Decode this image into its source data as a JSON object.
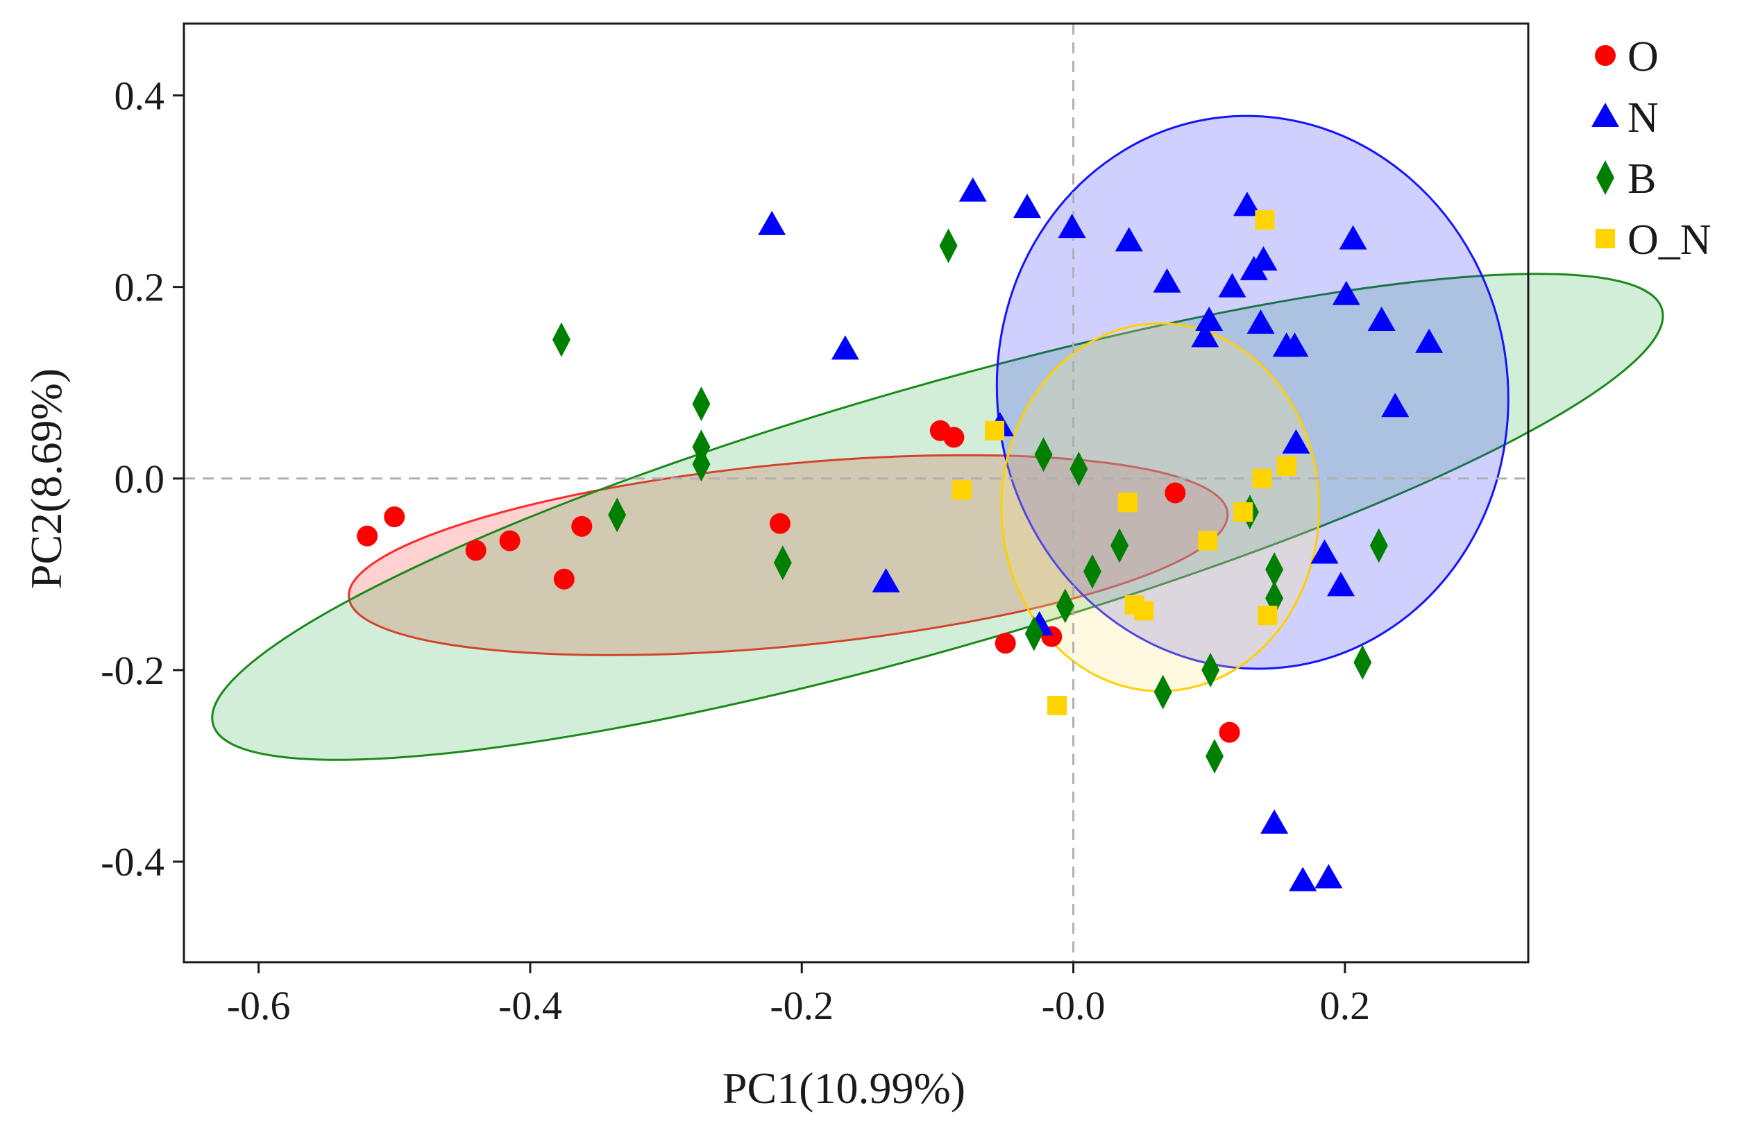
{
  "chart_data": {
    "type": "scatter",
    "xlabel": "PC1(10.99%)",
    "ylabel": "PC2(8.69%)",
    "xlim": [
      -0.655,
      0.335
    ],
    "ylim": [
      -0.505,
      0.475
    ],
    "x_ticks": [
      -0.6,
      -0.4,
      -0.2,
      0.0,
      0.2
    ],
    "x_tick_labels": [
      "-0.6",
      "-0.4",
      "-0.2",
      "-0.0",
      "0.2"
    ],
    "y_ticks": [
      -0.4,
      -0.2,
      0.0,
      0.2,
      0.4
    ],
    "y_tick_labels": [
      "-0.4",
      "-0.2",
      "0.0",
      "0.2",
      "0.4"
    ],
    "reference_lines": {
      "x": 0,
      "y": 0,
      "style": "dashed"
    },
    "legend_position": "right, outside plot",
    "series": [
      {
        "name": "O",
        "marker": "circle",
        "color": "#ff0000",
        "points": [
          [
            -0.52,
            -0.06
          ],
          [
            -0.5,
            -0.04
          ],
          [
            -0.44,
            -0.075
          ],
          [
            -0.415,
            -0.065
          ],
          [
            -0.375,
            -0.105
          ],
          [
            -0.362,
            -0.05
          ],
          [
            -0.216,
            -0.047
          ],
          [
            -0.098,
            0.05
          ],
          [
            -0.088,
            0.043
          ],
          [
            -0.05,
            -0.172
          ],
          [
            -0.016,
            -0.165
          ],
          [
            0.075,
            -0.015
          ],
          [
            0.115,
            -0.265
          ]
        ]
      },
      {
        "name": "N",
        "marker": "triangle",
        "color": "#0000ff",
        "points": [
          [
            -0.222,
            0.265
          ],
          [
            -0.168,
            0.135
          ],
          [
            -0.138,
            -0.108
          ],
          [
            -0.074,
            0.3
          ],
          [
            -0.054,
            0.055
          ],
          [
            -0.034,
            0.283
          ],
          [
            -0.025,
            -0.153
          ],
          [
            -0.001,
            0.262
          ],
          [
            0.041,
            0.248
          ],
          [
            0.069,
            0.205
          ],
          [
            0.097,
            0.148
          ],
          [
            0.1,
            0.165
          ],
          [
            0.117,
            0.2
          ],
          [
            0.128,
            0.285
          ],
          [
            0.133,
            0.218
          ],
          [
            0.14,
            0.228
          ],
          [
            0.138,
            0.162
          ],
          [
            0.157,
            0.138
          ],
          [
            0.163,
            0.138
          ],
          [
            0.164,
            0.037
          ],
          [
            0.185,
            -0.078
          ],
          [
            0.197,
            -0.112
          ],
          [
            0.201,
            0.192
          ],
          [
            0.206,
            0.25
          ],
          [
            0.227,
            0.165
          ],
          [
            0.237,
            0.075
          ],
          [
            0.262,
            0.142
          ],
          [
            0.148,
            -0.36
          ],
          [
            0.169,
            -0.42
          ],
          [
            0.188,
            -0.417
          ]
        ]
      },
      {
        "name": "B",
        "marker": "diamond",
        "color": "#008000",
        "points": [
          [
            -0.377,
            0.145
          ],
          [
            -0.336,
            -0.038
          ],
          [
            -0.274,
            0.078
          ],
          [
            -0.274,
            0.033
          ],
          [
            -0.274,
            0.015
          ],
          [
            -0.214,
            -0.088
          ],
          [
            -0.092,
            0.243
          ],
          [
            -0.029,
            -0.162
          ],
          [
            -0.022,
            0.025
          ],
          [
            -0.006,
            -0.133
          ],
          [
            0.004,
            0.01
          ],
          [
            0.014,
            -0.097
          ],
          [
            0.034,
            -0.07
          ],
          [
            0.066,
            -0.223
          ],
          [
            0.101,
            -0.2
          ],
          [
            0.104,
            -0.29
          ],
          [
            0.13,
            -0.035
          ],
          [
            0.148,
            -0.095
          ],
          [
            0.148,
            -0.125
          ],
          [
            0.213,
            -0.192
          ],
          [
            0.225,
            -0.07
          ]
        ]
      },
      {
        "name": "O_N",
        "marker": "square",
        "color": "#ffd400",
        "points": [
          [
            -0.058,
            0.05
          ],
          [
            -0.082,
            -0.012
          ],
          [
            -0.012,
            -0.237
          ],
          [
            0.04,
            -0.025
          ],
          [
            0.045,
            -0.132
          ],
          [
            0.052,
            -0.138
          ],
          [
            0.099,
            -0.065
          ],
          [
            0.125,
            -0.035
          ],
          [
            0.139,
            0.0
          ],
          [
            0.143,
            -0.143
          ],
          [
            0.141,
            0.27
          ],
          [
            0.157,
            0.013
          ]
        ]
      }
    ],
    "ellipses": [
      {
        "group": "O",
        "cx": -0.21,
        "cy": -0.08,
        "rx": 0.325,
        "ry": 0.095,
        "angle_deg": -5.5,
        "stroke": "#ff2a2a",
        "fill": "#ff0000",
        "fill_opacity": 0.18
      },
      {
        "group": "B",
        "cx": -0.1,
        "cy": -0.04,
        "rx": 0.555,
        "ry": 0.137,
        "angle_deg": -16,
        "stroke": "#1a8a1a",
        "fill": "#1faa3a",
        "fill_opacity": 0.2
      },
      {
        "group": "N",
        "cx": 0.132,
        "cy": 0.09,
        "rx": 0.188,
        "ry": 0.289,
        "angle_deg": -8,
        "stroke": "#1414ff",
        "fill": "#2a2aff",
        "fill_opacity": 0.22
      },
      {
        "group": "O_N",
        "cx": 0.064,
        "cy": -0.03,
        "rx": 0.117,
        "ry": 0.192,
        "angle_deg": 0,
        "stroke": "#ffd000",
        "fill": "#ffe680",
        "fill_opacity": 0.25
      }
    ]
  }
}
